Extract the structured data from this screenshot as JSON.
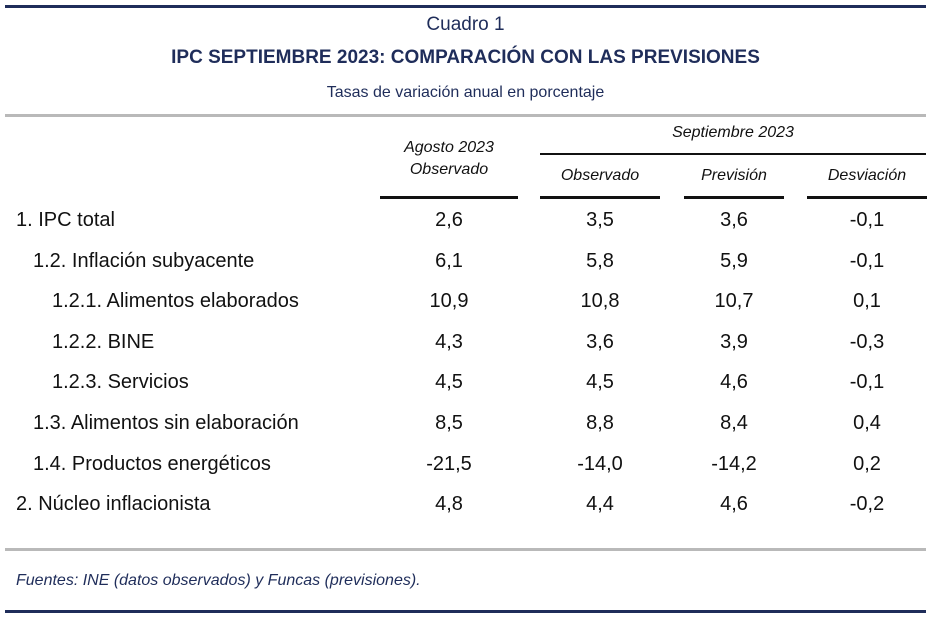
{
  "header": {
    "cuadro": "Cuadro 1",
    "title": "IPC SEPTIEMBRE 2023: COMPARACIÓN CON LAS PREVISIONES",
    "subtitle": "Tasas de variación anual en porcentaje"
  },
  "columns": {
    "agosto_line1": "Agosto 2023",
    "agosto_line2": "Observado",
    "septiembre": "Septiembre 2023",
    "observado": "Observado",
    "prevision": "Previsión",
    "desviacion": "Desviación"
  },
  "rows": [
    {
      "label": "1. IPC total",
      "agosto": "2,6",
      "observado": "3,5",
      "prevision": "3,6",
      "desviacion": "-0,1"
    },
    {
      "label": "1.2. Inflación subyacente",
      "agosto": "6,1",
      "observado": "5,8",
      "prevision": "5,9",
      "desviacion": "-0,1"
    },
    {
      "label": "1.2.1. Alimentos elaborados",
      "agosto": "10,9",
      "observado": "10,8",
      "prevision": "10,7",
      "desviacion": "0,1"
    },
    {
      "label": "1.2.2. BINE",
      "agosto": "4,3",
      "observado": "3,6",
      "prevision": "3,9",
      "desviacion": "-0,3"
    },
    {
      "label": "1.2.3. Servicios",
      "agosto": "4,5",
      "observado": "4,5",
      "prevision": "4,6",
      "desviacion": "-0,1"
    },
    {
      "label": "1.3. Alimentos sin elaboración",
      "agosto": "8,5",
      "observado": "8,8",
      "prevision": "8,4",
      "desviacion": "0,4"
    },
    {
      "label": "1.4. Productos energéticos",
      "agosto": "-21,5",
      "observado": "-14,0",
      "prevision": "-14,2",
      "desviacion": "0,2"
    },
    {
      "label": "2. Núcleo inflacionista",
      "agosto": "4,8",
      "observado": "4,4",
      "prevision": "4,6",
      "desviacion": "-0,2"
    }
  ],
  "footnote": "Fuentes: INE (datos observados) y Funcas (previsiones).",
  "colors": {
    "navy": "#1f2d5a",
    "rule_grey": "#b9b9b9",
    "text": "#111111"
  }
}
